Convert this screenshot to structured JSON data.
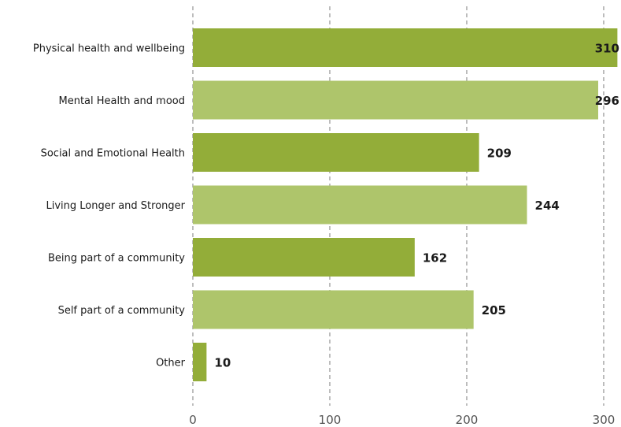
{
  "chart_data": {
    "type": "bar",
    "orientation": "horizontal",
    "categories": [
      "Physical health and wellbeing",
      "Mental Health and mood",
      "Social and Emotional Health",
      "Living Longer and Stronger",
      "Being part of a community",
      "Self part of a community",
      "Other"
    ],
    "values": [
      310,
      296,
      209,
      244,
      162,
      205,
      10
    ],
    "title": "",
    "xlabel": "",
    "ylabel": "",
    "xlim": [
      0,
      310
    ],
    "xticks": [
      0,
      100,
      200,
      300
    ],
    "grid": "vertical dashed",
    "legend": "none",
    "colors": {
      "dark_bar": "#93ad39",
      "light_bar": "#aec56b",
      "grid": "#999999",
      "text": "#1a1a1a"
    }
  }
}
